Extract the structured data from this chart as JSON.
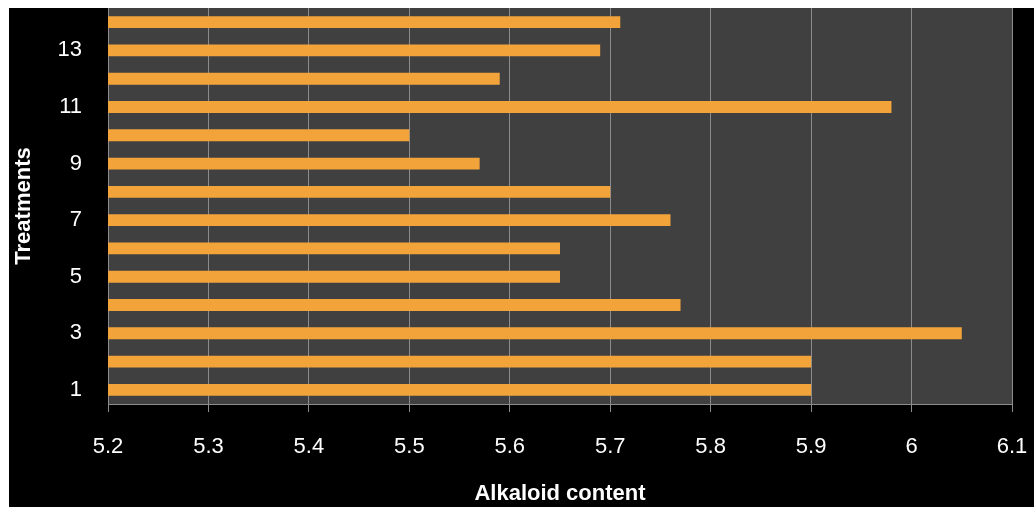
{
  "chart_data": {
    "type": "bar",
    "orientation": "horizontal",
    "xlabel": "Alkaloid content",
    "ylabel": "Treatments",
    "categories": [
      null,
      "13",
      null,
      "11",
      null,
      "9",
      null,
      "7",
      null,
      "5",
      null,
      "3",
      null,
      "1"
    ],
    "values": [
      5.71,
      5.69,
      5.59,
      5.98,
      5.5,
      5.57,
      5.7,
      5.76,
      5.65,
      5.65,
      5.77,
      6.05,
      5.9,
      5.9
    ],
    "color": "#f2a33a",
    "xlim": [
      5.2,
      6.1
    ],
    "xticks": [
      5.2,
      5.3,
      5.4,
      5.5,
      5.6,
      5.7,
      5.8,
      5.9,
      6,
      6.1
    ],
    "grid": "x"
  }
}
